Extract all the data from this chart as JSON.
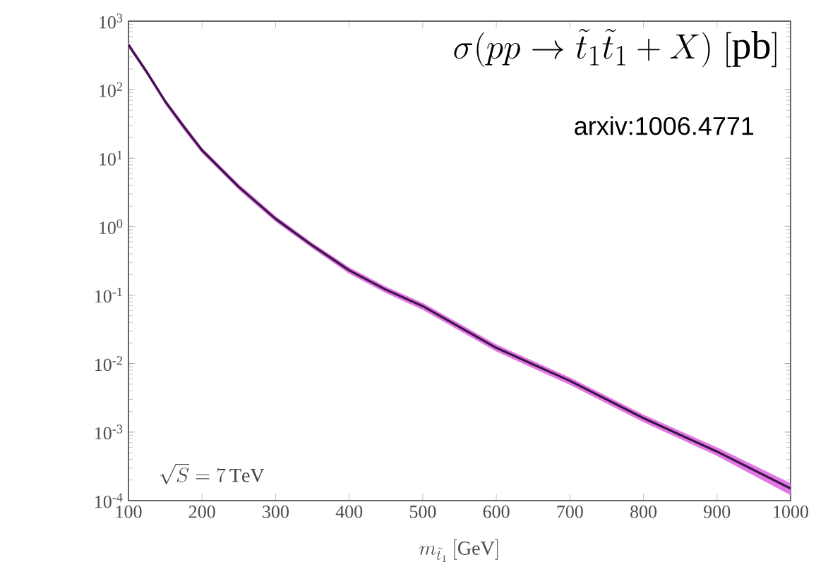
{
  "chart_data": {
    "type": "line",
    "title": "\\sigma(pp\\to\\tilde{t}_1\\tilde{t}_1+X)\\ [\\mathrm{pb}]",
    "xlabel": "m_{\\tilde{t}_1}\\,[\\mathrm{GeV}]",
    "annotations": [
      "arxiv:1006.4771",
      "\\sqrt{S}=7\\,\\mathrm{TeV}"
    ],
    "log": "y",
    "xlim": [
      100,
      1000
    ],
    "ylim": [
      0.0001,
      1000
    ],
    "xticks": [
      100,
      200,
      300,
      400,
      500,
      600,
      700,
      800,
      900,
      1000
    ],
    "yticks": [
      {
        "value": 0.0001,
        "label": "10$^{-4}$"
      },
      {
        "value": 0.001,
        "label": "10$^{-3}$"
      },
      {
        "value": 0.01,
        "label": "10$^{-2}$"
      },
      {
        "value": 0.1,
        "label": "10$^{-1}$"
      },
      {
        "value": 1,
        "label": "10$^{0}$"
      },
      {
        "value": 10,
        "label": "10$^{1}$"
      },
      {
        "value": 100,
        "label": "10$^{2}$"
      },
      {
        "value": 1000,
        "label": "10$^{3}$"
      }
    ],
    "grid": false,
    "marker": "none",
    "line_style": "solid",
    "series": [
      {
        "color": "#3a1746",
        "x": [
          100,
          125,
          150,
          175,
          200,
          250,
          300,
          350,
          400,
          450,
          500,
          600,
          700,
          800,
          900,
          1000
        ],
        "values": [
          450,
          180,
          67,
          29,
          13,
          3.8,
          1.3,
          0.53,
          0.23,
          0.12,
          0.069,
          0.017,
          0.0056,
          0.0016,
          0.00052,
          0.00015
        ],
        "lower": [
          410,
          164,
          61,
          26,
          11.8,
          3.45,
          1.18,
          0.48,
          0.205,
          0.107,
          0.061,
          0.015,
          0.0049,
          0.0014,
          0.00045,
          0.00012
        ],
        "upper": [
          490,
          196,
          73,
          32,
          14.2,
          4.15,
          1.42,
          0.58,
          0.255,
          0.133,
          0.077,
          0.019,
          0.0063,
          0.0018,
          0.0006,
          0.00018
        ]
      }
    ]
  }
}
